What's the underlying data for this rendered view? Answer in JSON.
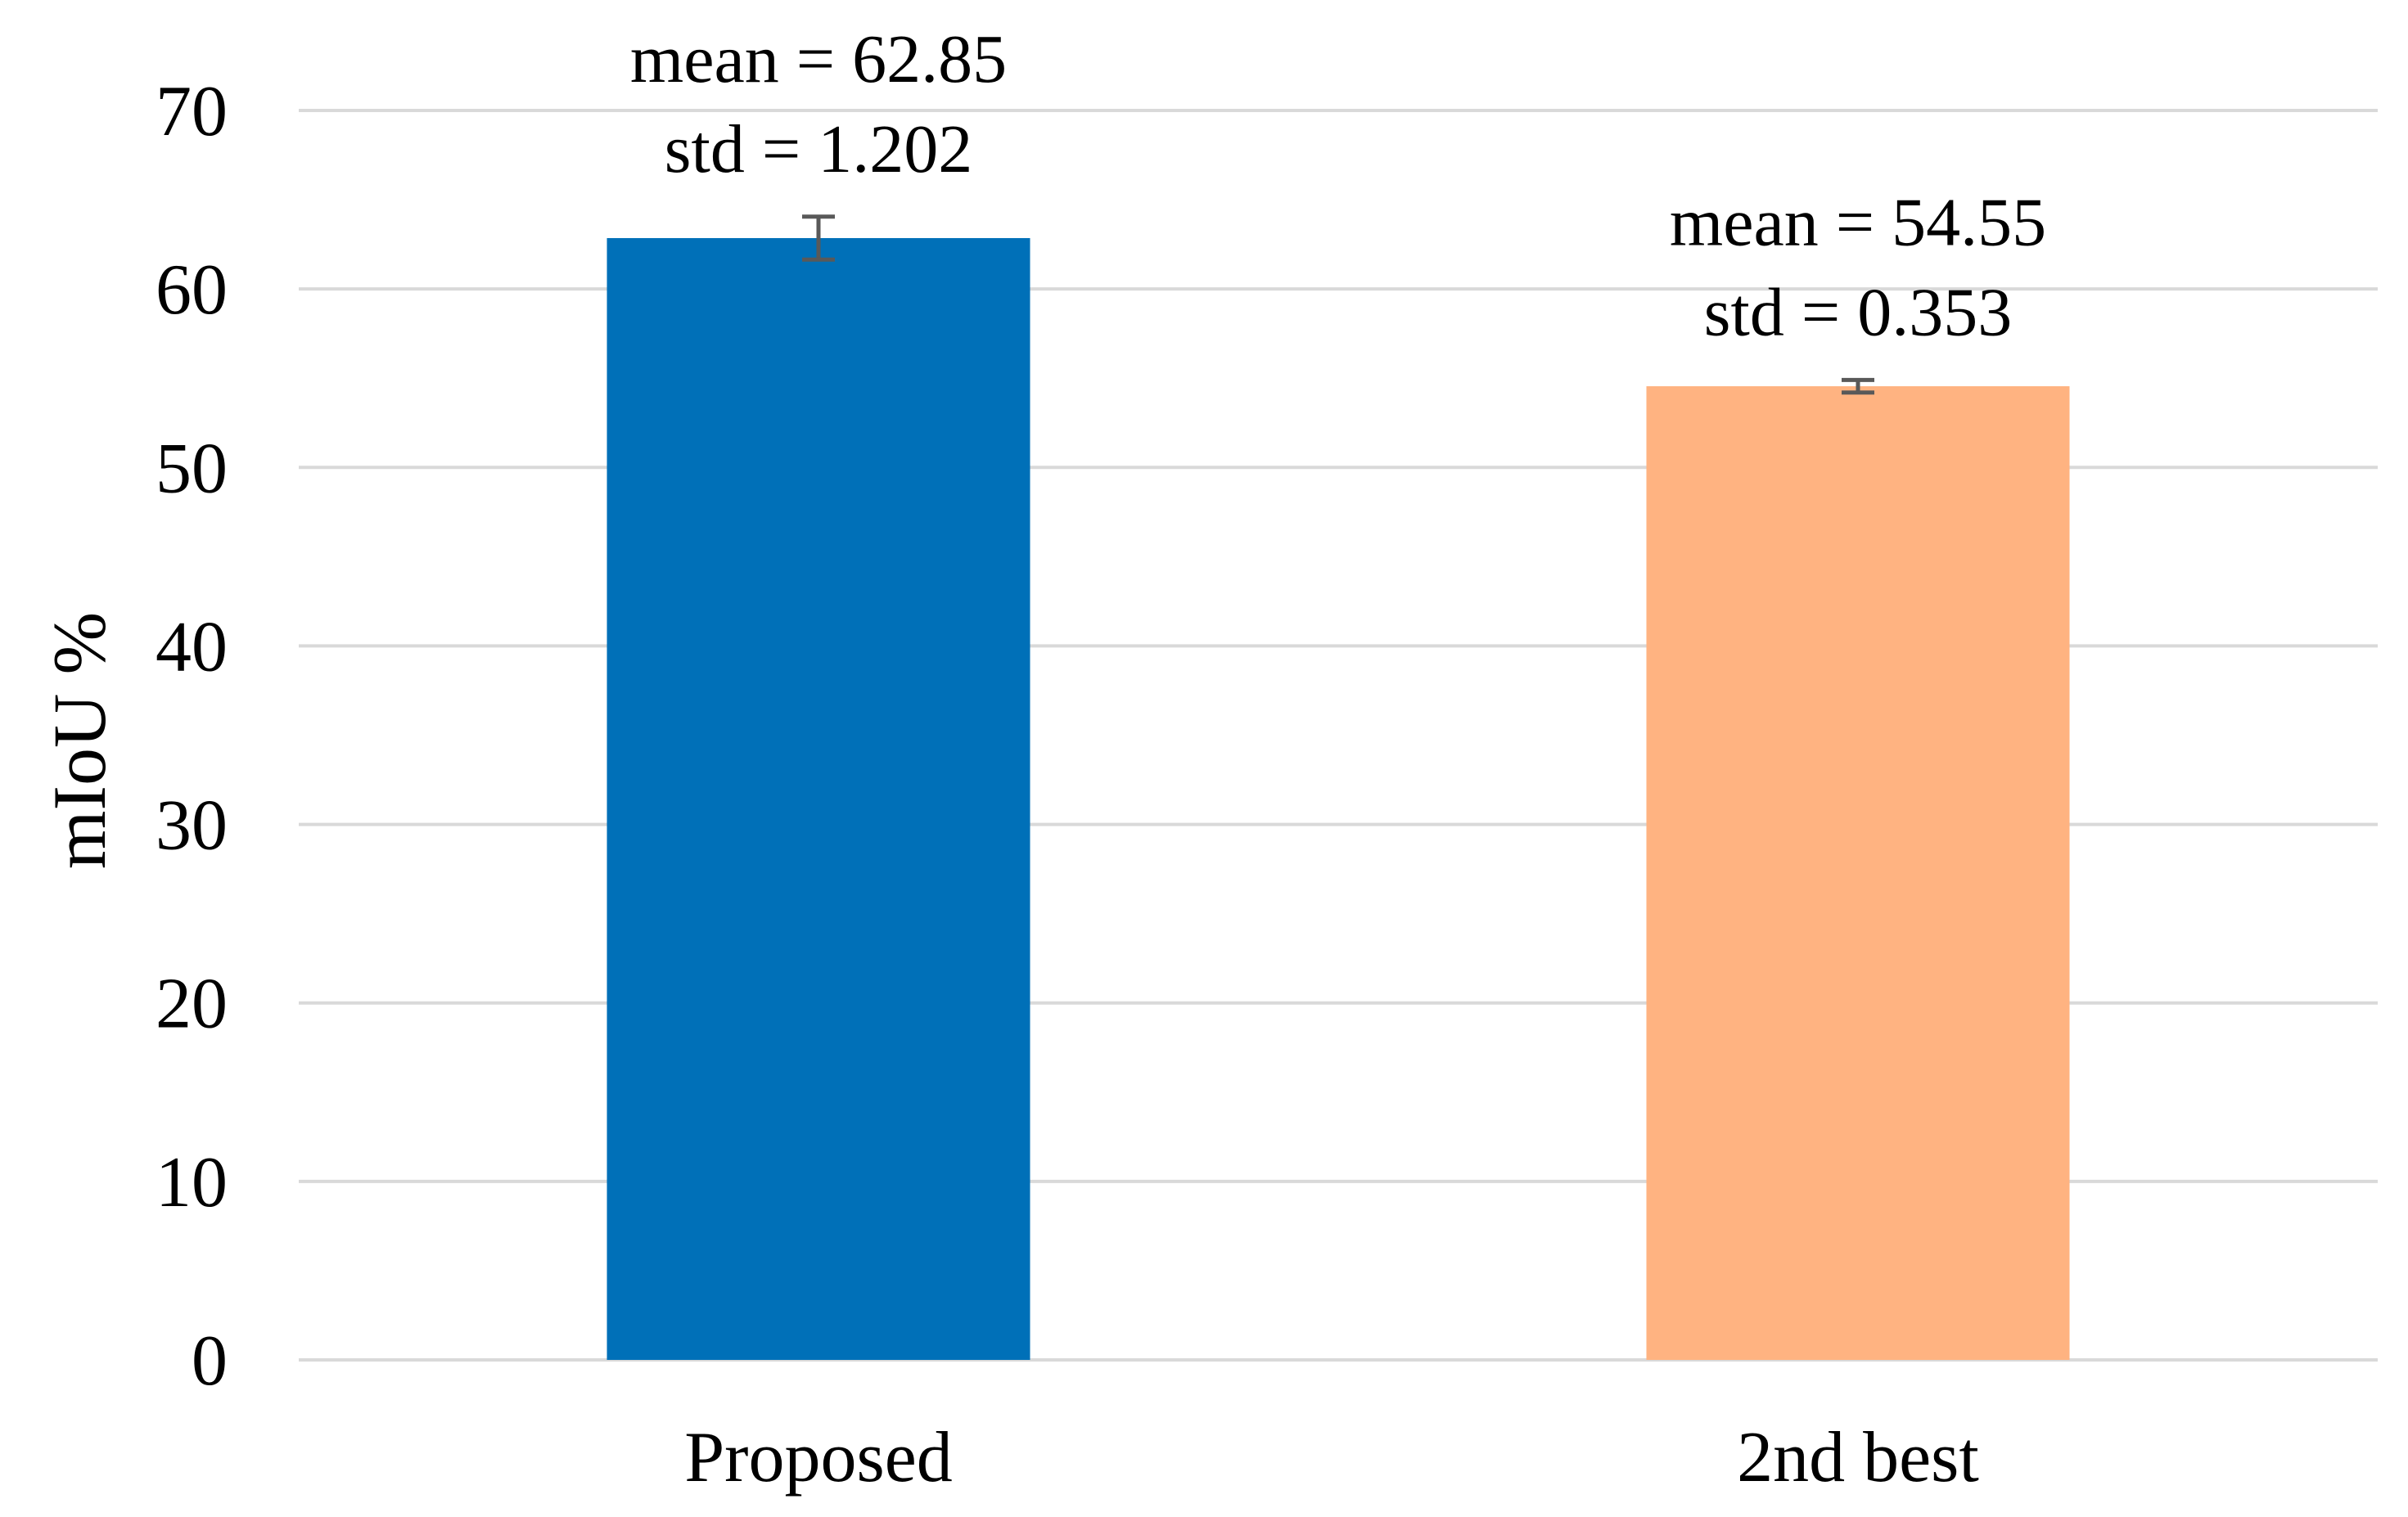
{
  "chart_data": {
    "type": "bar",
    "categories": [
      "Proposed",
      "2nd best"
    ],
    "values": [
      62.85,
      54.55
    ],
    "errors": [
      1.202,
      0.353
    ],
    "colors": [
      "#0070b8",
      "#ffb381"
    ],
    "data_labels": [
      [
        "mean = 62.85",
        "std = 1.202"
      ],
      [
        "mean = 54.55",
        "std = 0.353"
      ]
    ],
    "ylabel": "mIoU %",
    "xlabel": "",
    "title": "",
    "ylim": [
      0,
      70
    ],
    "yticks": [
      0,
      10,
      20,
      30,
      40,
      50,
      60,
      70
    ],
    "grid": true,
    "legend": "none"
  }
}
